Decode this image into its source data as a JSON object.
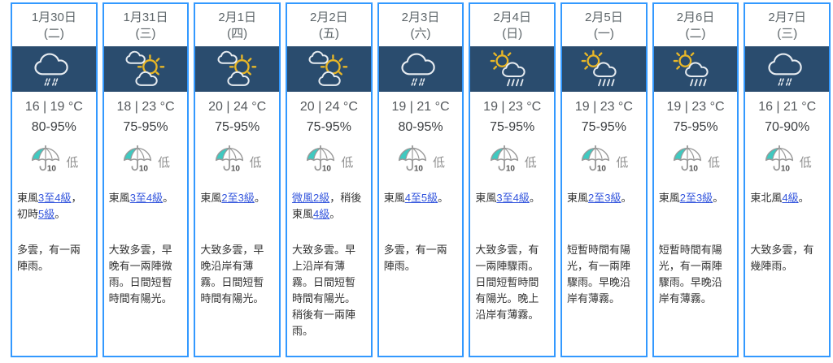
{
  "colors": {
    "card_border": "#3399ff",
    "icon_band_background": "#2a4c6e",
    "icon_cloud": "#e6ebf0",
    "icon_sun": "#e9b727",
    "psr_teal": "#3fc9c0",
    "link": "#3355dd"
  },
  "psr_icon_value": "10",
  "days": [
    {
      "date": "1月30日",
      "weekday": "(二)",
      "icon": "rain-cloud-icon",
      "temp": "16 | 19 °C",
      "humidity": "80-95%",
      "psr": "低",
      "wind": [
        {
          "text": "東風",
          "link": false
        },
        {
          "text": "3至4級",
          "link": true
        },
        {
          "text": "，初時",
          "link": false
        },
        {
          "text": "5級",
          "link": true
        },
        {
          "text": "。",
          "link": false
        }
      ],
      "description": "多雲，有一兩陣雨。"
    },
    {
      "date": "1月31日",
      "weekday": "(三)",
      "icon": "sun-between-clouds-icon",
      "temp": "18 | 23 °C",
      "humidity": "75-95%",
      "psr": "低",
      "wind": [
        {
          "text": "東風",
          "link": false
        },
        {
          "text": "3至4級",
          "link": true
        },
        {
          "text": "。",
          "link": false
        }
      ],
      "description": "大致多雲，早晚有一兩陣微雨。日間短暫時間有陽光。"
    },
    {
      "date": "2月1日",
      "weekday": "(四)",
      "icon": "sun-between-clouds-icon",
      "temp": "20 | 24 °C",
      "humidity": "75-95%",
      "psr": "低",
      "wind": [
        {
          "text": "東風",
          "link": false
        },
        {
          "text": "2至3級",
          "link": true
        },
        {
          "text": "。",
          "link": false
        }
      ],
      "description": "大致多雲，早晚沿岸有薄霧。日間短暫時間有陽光。"
    },
    {
      "date": "2月2日",
      "weekday": "(五)",
      "icon": "sun-between-clouds-icon",
      "temp": "20 | 24 °C",
      "humidity": "75-95%",
      "psr": "低",
      "wind": [
        {
          "text": "微風2級",
          "link": true
        },
        {
          "text": "，稍後東風",
          "link": false
        },
        {
          "text": "4級",
          "link": true
        },
        {
          "text": "。",
          "link": false
        }
      ],
      "description": "大致多雲。早上沿岸有薄霧。日間短暫時間有陽光。稍後有一兩陣雨。"
    },
    {
      "date": "2月3日",
      "weekday": "(六)",
      "icon": "rain-cloud-icon",
      "temp": "19 | 21 °C",
      "humidity": "80-95%",
      "psr": "低",
      "wind": [
        {
          "text": "東風",
          "link": false
        },
        {
          "text": "4至5級",
          "link": true
        },
        {
          "text": "。",
          "link": false
        }
      ],
      "description": "多雲，有一兩陣雨。"
    },
    {
      "date": "2月4日",
      "weekday": "(日)",
      "icon": "sun-shower-icon",
      "temp": "19 | 23 °C",
      "humidity": "75-95%",
      "psr": "低",
      "wind": [
        {
          "text": "東風",
          "link": false
        },
        {
          "text": "3至4級",
          "link": true
        },
        {
          "text": "。",
          "link": false
        }
      ],
      "description": "大致多雲，有一兩陣驟雨。日間短暫時間有陽光。晚上沿岸有薄霧。"
    },
    {
      "date": "2月5日",
      "weekday": "(一)",
      "icon": "sun-shower-icon",
      "temp": "19 | 23 °C",
      "humidity": "75-95%",
      "psr": "低",
      "wind": [
        {
          "text": "東風",
          "link": false
        },
        {
          "text": "2至3級",
          "link": true
        },
        {
          "text": "。",
          "link": false
        }
      ],
      "description": "短暫時間有陽光，有一兩陣驟雨。早晚沿岸有薄霧。"
    },
    {
      "date": "2月6日",
      "weekday": "(二)",
      "icon": "sun-shower-icon",
      "temp": "19 | 23 °C",
      "humidity": "75-95%",
      "psr": "低",
      "wind": [
        {
          "text": "東風",
          "link": false
        },
        {
          "text": "2至3級",
          "link": true
        },
        {
          "text": "。",
          "link": false
        }
      ],
      "description": "短暫時間有陽光，有一兩陣驟雨。早晚沿岸有薄霧。"
    },
    {
      "date": "2月7日",
      "weekday": "(三)",
      "icon": "rain-cloud-icon",
      "temp": "16 | 21 °C",
      "humidity": "70-90%",
      "psr": "低",
      "wind": [
        {
          "text": "東北風",
          "link": false
        },
        {
          "text": "4級",
          "link": true
        },
        {
          "text": "。",
          "link": false
        }
      ],
      "description": "大致多雲，有幾陣雨。"
    }
  ]
}
